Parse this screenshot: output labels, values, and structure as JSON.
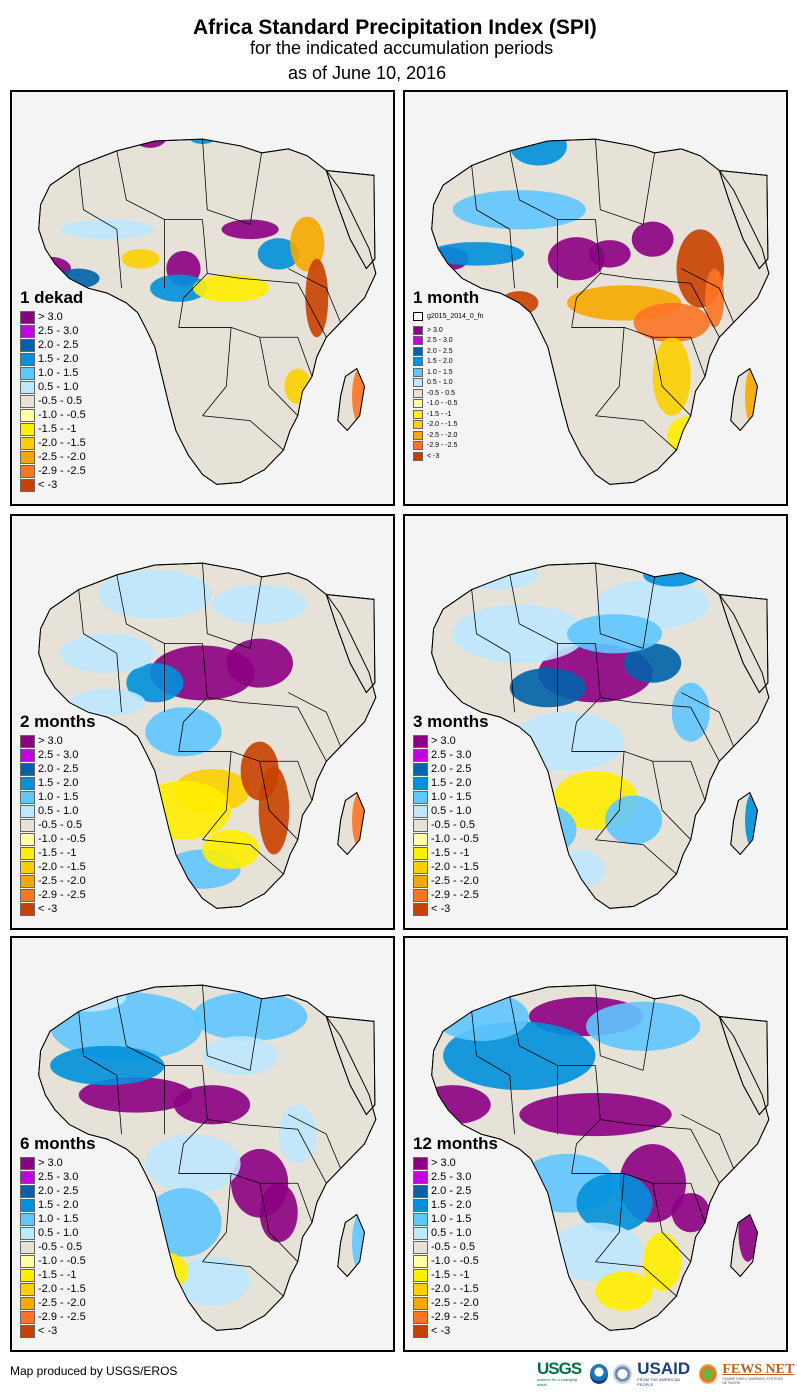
{
  "header": {
    "title": "Africa Standard Precipitation Index (SPI)",
    "subtitle": "for the indicated accumulation periods",
    "date": "as of June 10, 2016"
  },
  "legend_classes": [
    {
      "label": "> 3.0",
      "color": "#8b0082"
    },
    {
      "label": "2.5 - 3.0",
      "color": "#c300e0"
    },
    {
      "label": "2.0 - 2.5",
      "color": "#0062a8"
    },
    {
      "label": "1.5 - 2.0",
      "color": "#0090dc"
    },
    {
      "label": "1.0 - 1.5",
      "color": "#5fc6ff"
    },
    {
      "label": "0.5 - 1.0",
      "color": "#bee8ff"
    },
    {
      "label": "-0.5 - 0.5",
      "color": "#e6e2d8"
    },
    {
      "label": "-1.0 - -0.5",
      "color": "#ffffa8"
    },
    {
      "label": "-1.5 - -1",
      "color": "#ffee00"
    },
    {
      "label": "-2.0 - -1.5",
      "color": "#fcd000"
    },
    {
      "label": "-2.5 - -2.0",
      "color": "#f7a800"
    },
    {
      "label": "-2.9 - -2.5",
      "color": "#fc7425"
    },
    {
      "label": "< -3",
      "color": "#c84100"
    }
  ],
  "panels": [
    {
      "title": "1 dekad",
      "extra_legend_item": null
    },
    {
      "title": "1 month",
      "extra_legend_item": "g2015_2014_0_fn"
    },
    {
      "title": "2 months",
      "extra_legend_item": null
    },
    {
      "title": "3 months",
      "extra_legend_item": null
    },
    {
      "title": "6 months",
      "extra_legend_item": null
    },
    {
      "title": "12 months",
      "extra_legend_item": null
    }
  ],
  "colors": {
    "land_neutral": "#e6e2d8",
    "water": "#f4f4f4",
    "border": "#000000"
  },
  "footer": {
    "credit": "Map produced by USGS/EROS",
    "logos": {
      "usgs": "USGS",
      "usgs_tagline": "science for a changing world",
      "noaa": "NOAA",
      "usaid": "USAID",
      "usaid_tagline": "FROM THE AMERICAN PEOPLE",
      "fews": "FEWS NET",
      "fews_tagline": "FAMINE EARLY WARNING SYSTEMS NETWORK"
    }
  }
}
